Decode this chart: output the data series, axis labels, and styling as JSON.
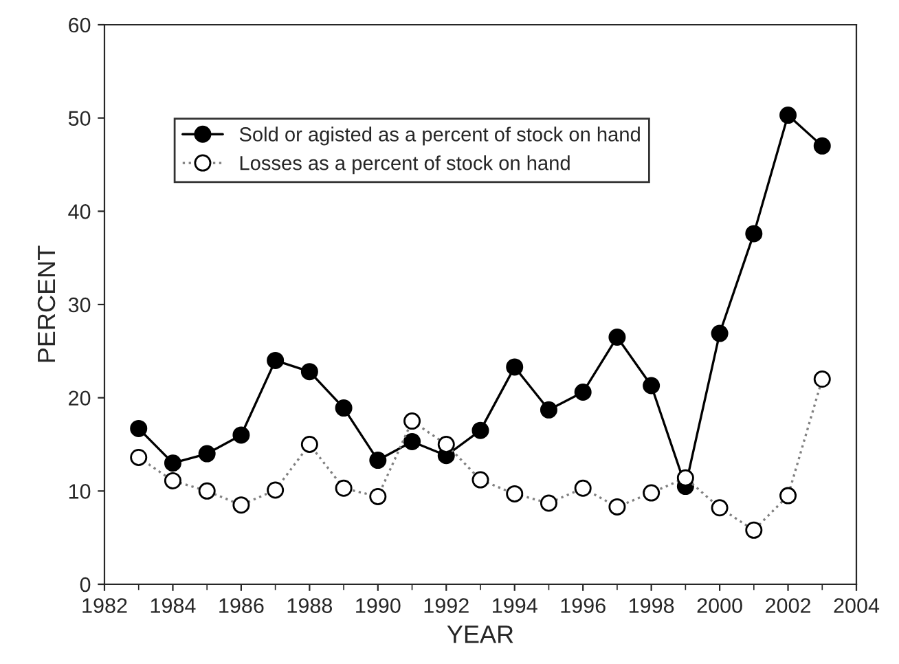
{
  "chart_data": {
    "type": "line",
    "xlabel": "YEAR",
    "ylabel": "PERCENT",
    "x": [
      1983,
      1984,
      1985,
      1986,
      1987,
      1988,
      1989,
      1990,
      1991,
      1992,
      1993,
      1994,
      1995,
      1996,
      1997,
      1998,
      1999,
      2000,
      2001,
      2002,
      2003
    ],
    "series": [
      {
        "name": "Sold or agisted as a percent of stock on hand",
        "color": "#000000",
        "marker": "circle",
        "line_style": "solid",
        "values": [
          16.7,
          13.0,
          14.0,
          16.0,
          24.0,
          22.8,
          18.9,
          13.3,
          15.3,
          13.8,
          16.5,
          23.3,
          18.7,
          20.6,
          26.5,
          21.3,
          10.5,
          26.9,
          37.6,
          50.3,
          47.0
        ]
      },
      {
        "name": "Losses as a percent of stock on hand",
        "color": "#808080",
        "marker": "circle",
        "line_style": "dotted",
        "values": [
          13.6,
          11.1,
          10.0,
          8.5,
          10.1,
          15.0,
          10.3,
          9.4,
          17.5,
          15.0,
          11.2,
          9.7,
          8.7,
          10.3,
          8.3,
          9.8,
          11.4,
          8.2,
          5.8,
          9.5,
          22.0
        ]
      }
    ],
    "xlim": [
      1982,
      2004
    ],
    "xticks": [
      1982,
      1984,
      1986,
      1988,
      1990,
      1992,
      1994,
      1996,
      1998,
      2000,
      2002,
      2004
    ],
    "ylim": [
      0,
      60
    ],
    "yticks": [
      0,
      10,
      20,
      30,
      40,
      50,
      60
    ],
    "grid": false,
    "legend": "top left"
  }
}
